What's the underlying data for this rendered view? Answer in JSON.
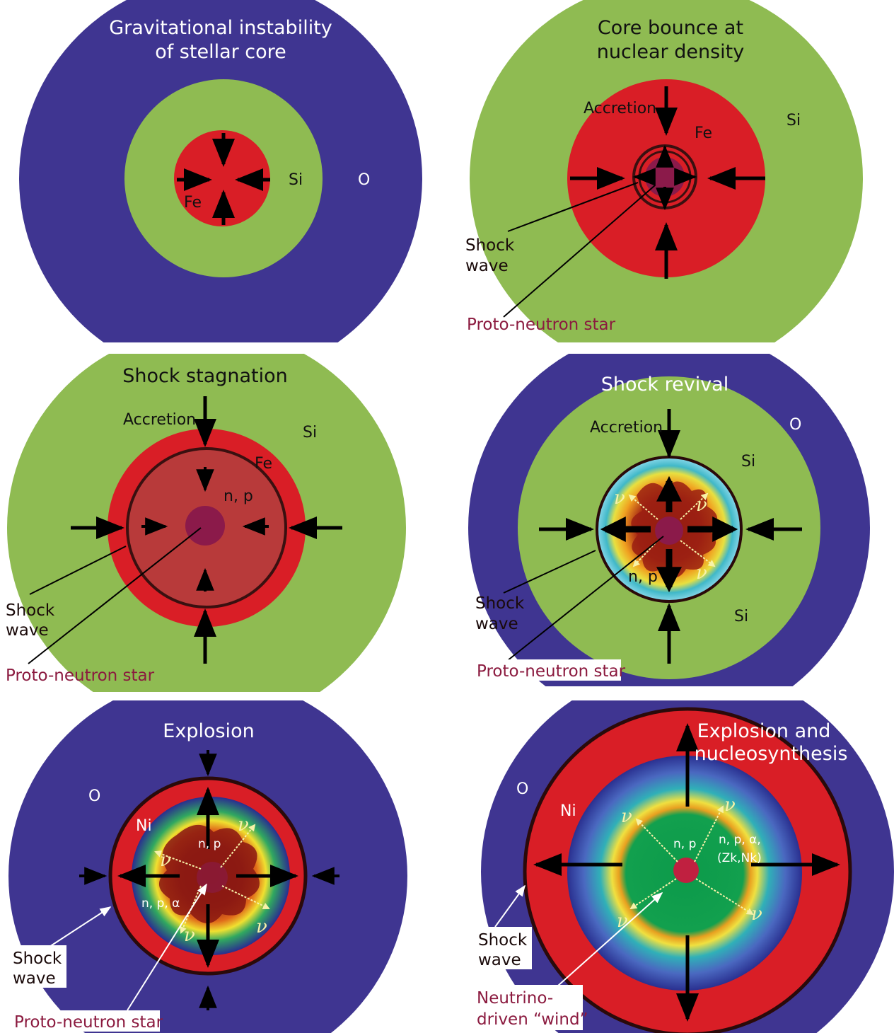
{
  "colors": {
    "oxygen": "#3f3591",
    "silicon": "#8fbb52",
    "iron": "#d91e26",
    "shocked": "#b83a3a",
    "protoneutron": "#8b1a4a",
    "arrow": "#000000",
    "neutrino": "#f7f2a8"
  },
  "panels": [
    {
      "title": [
        "Gravitational instability",
        "of  stellar core"
      ],
      "elements": {
        "fe": "Fe",
        "si": "Si",
        "o": "O"
      }
    },
    {
      "title": [
        "Core bounce at",
        "nuclear density"
      ],
      "elements": {
        "fe": "Fe",
        "si": "Si"
      },
      "accretion": "Accretion",
      "shock": [
        "Shock",
        "wave"
      ],
      "pns": "Proto-neutron star"
    },
    {
      "title": [
        "Shock stagnation"
      ],
      "elements": {
        "fe": "Fe",
        "si": "Si",
        "np": "n, p"
      },
      "accretion": "Accretion",
      "shock": [
        "Shock",
        "wave"
      ],
      "pns": "Proto-neutron star"
    },
    {
      "title": [
        "Shock revival"
      ],
      "elements": {
        "si_top": "Si",
        "si_bottom": "Si",
        "o": "O",
        "np": "n, p"
      },
      "accretion": "Accretion",
      "shock": [
        "Shock",
        "wave"
      ],
      "pns": "Proto-neutron star",
      "nu": "ν"
    },
    {
      "title": [
        "Explosion"
      ],
      "elements": {
        "o": "O",
        "ni": "Ni",
        "np": "n, p",
        "npa": "n, p, α"
      },
      "shock": [
        "Shock",
        "wave"
      ],
      "pns": "Proto-neutron star",
      "nu": "ν"
    },
    {
      "title": [
        "Explosion and",
        "nucleosynthesis"
      ],
      "elements": {
        "o": "O",
        "ni": "Ni",
        "np": "n, p",
        "npa": "n, p, α,",
        "zn": "(Zk,Nk)"
      },
      "shock": [
        "Shock",
        "wave"
      ],
      "wind": [
        "Neutrino-",
        "driven “wind”"
      ],
      "nu": "ν"
    }
  ]
}
